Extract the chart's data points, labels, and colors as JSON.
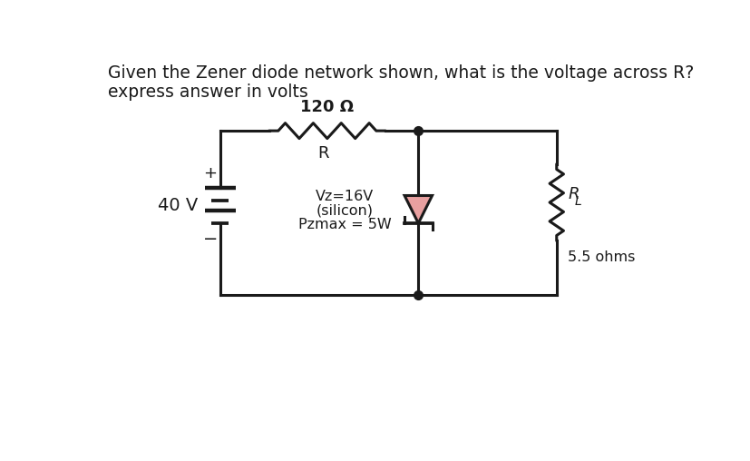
{
  "title_line1": "Given the Zener diode network shown, what is the voltage across R?",
  "title_line2": "express answer in volts",
  "bg_color": "#ffffff",
  "circuit_color": "#1a1a1a",
  "resistor_label_top": "120 Ω",
  "resistor_label_bottom": "R",
  "voltage_label": "40 V",
  "zener_label_line1": "Vz=16V",
  "zener_label_line2": "(silicon)",
  "zener_label_line3": "Pzmax = 5W",
  "rl_label_R": "R",
  "rl_label_L": "L",
  "rl_ohms": "5.5 ohms",
  "plus_label": "+",
  "minus_label": "−",
  "line_width": 2.2,
  "font_size_title": 13.5,
  "diode_fill": "#e8a0a0",
  "junction_dot_size": 7
}
